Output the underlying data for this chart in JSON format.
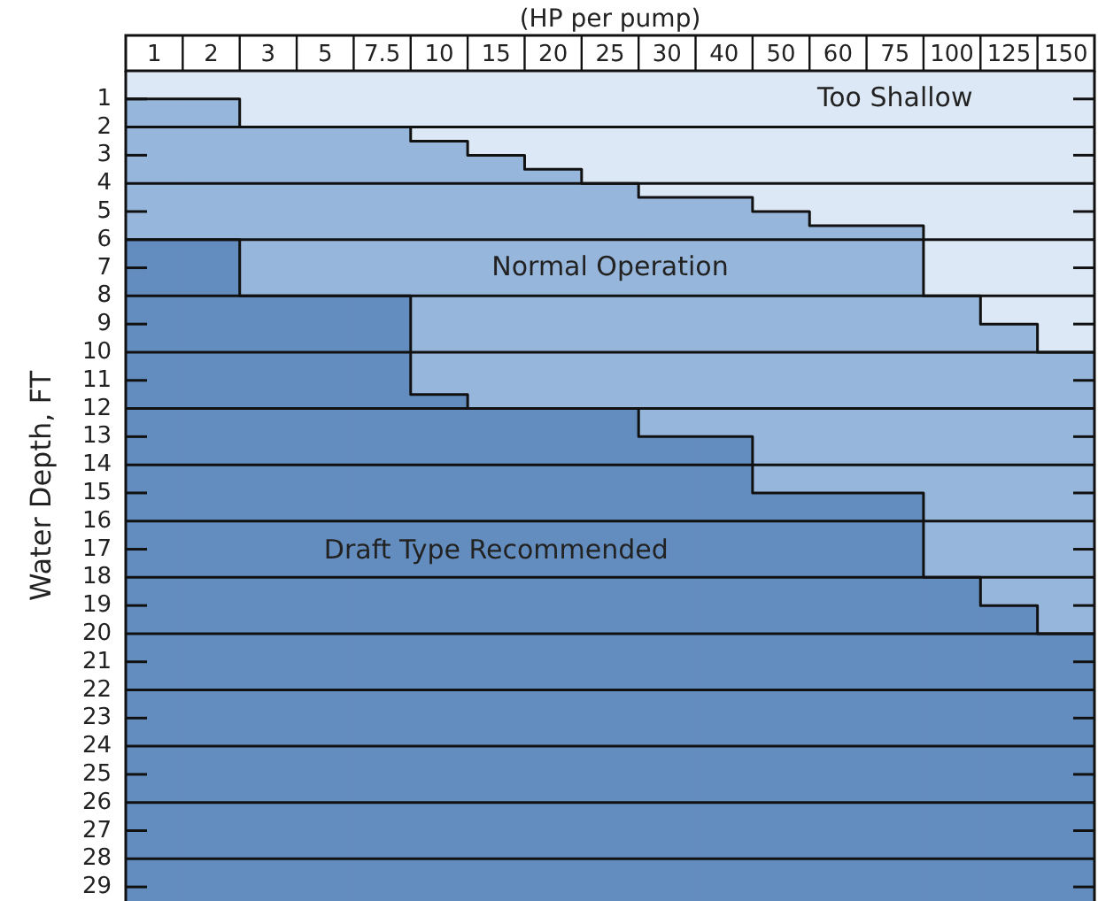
{
  "chart_data": {
    "type": "bar",
    "stacked": true,
    "xlabel": "(HP per pump)",
    "ylabel": "Water Depth,  FT",
    "categories": [
      "1",
      "2",
      "3",
      "5",
      "7.5",
      "10",
      "15",
      "20",
      "25",
      "30",
      "40",
      "50",
      "60",
      "75",
      "100",
      "125",
      "150"
    ],
    "series": [
      {
        "name": "Too Shallow",
        "color": "#dce8f5",
        "values": [
          1,
          1,
          2,
          2,
          2,
          2.5,
          3,
          3.5,
          4,
          4.5,
          4.5,
          5,
          5.5,
          5.5,
          8,
          9,
          10
        ]
      },
      {
        "name": "Normal Operation",
        "color": "#97b6db",
        "values": [
          5,
          5,
          6,
          6,
          6,
          9,
          9,
          8.5,
          8,
          8.5,
          8.5,
          10,
          9.5,
          9.5,
          10,
          10,
          10
        ]
      },
      {
        "name": "Draft Type Recommended",
        "color": "#648dbf",
        "values": [
          23.5,
          23.5,
          21.5,
          21.5,
          21.5,
          18,
          17.5,
          17.5,
          17.5,
          16.5,
          16.5,
          14.5,
          14.5,
          14.5,
          11.5,
          10.5,
          9.5
        ]
      }
    ],
    "ylim": [
      29.5,
      0
    ],
    "yticks": [
      1,
      2,
      3,
      4,
      5,
      6,
      7,
      8,
      9,
      10,
      11,
      12,
      13,
      14,
      15,
      16,
      17,
      18,
      19,
      20,
      21,
      22,
      23,
      24,
      25,
      26,
      27,
      28,
      29
    ],
    "grid": "y"
  }
}
